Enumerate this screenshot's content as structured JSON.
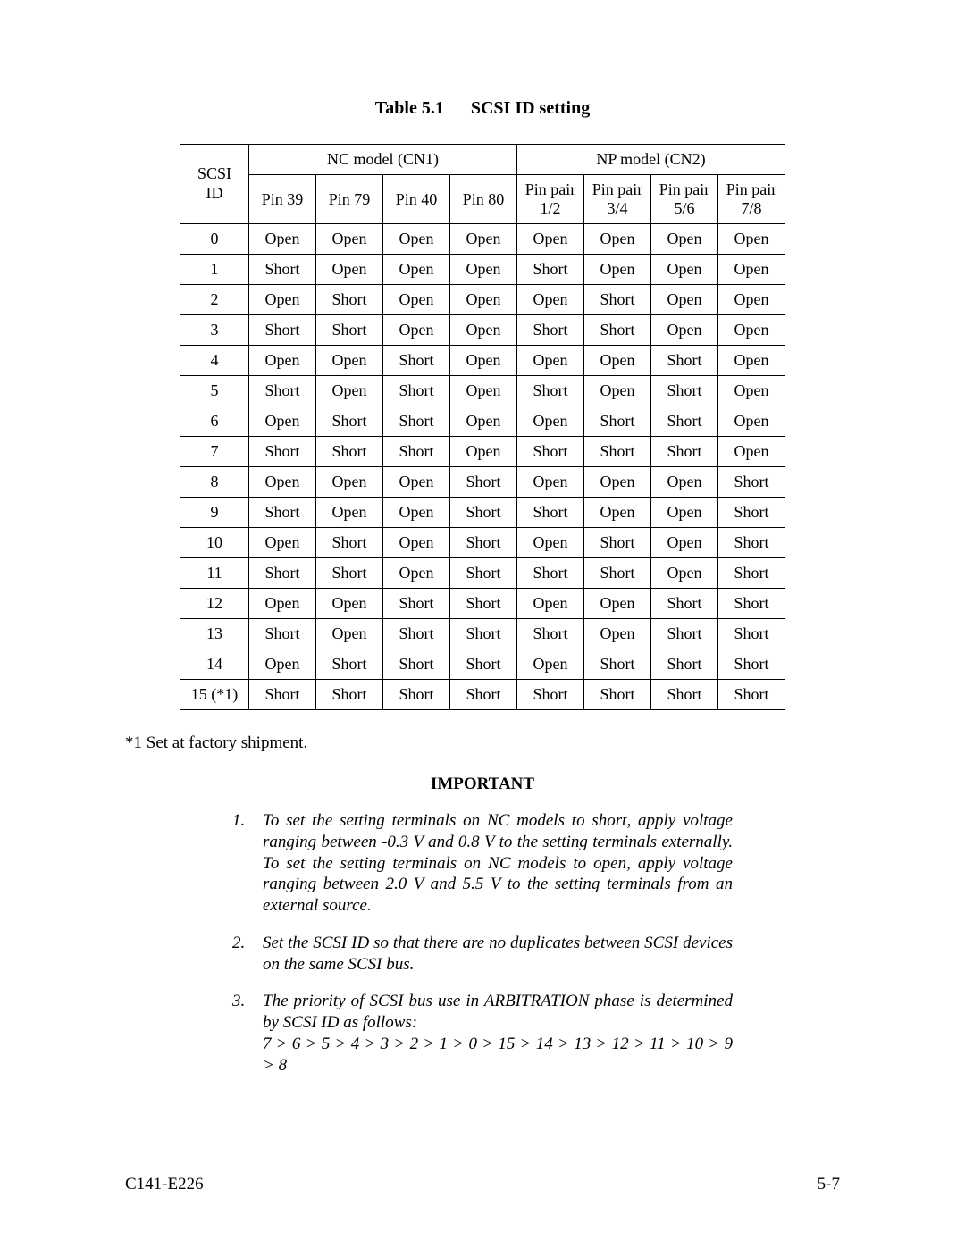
{
  "title_label": "Table 5.1",
  "title_text": "SCSI ID setting",
  "table": {
    "id_header": "SCSI ID",
    "group_headers": [
      "NC model (CN1)",
      "NP model (CN2)"
    ],
    "sub_headers": [
      "Pin 39",
      "Pin 79",
      "Pin 40",
      "Pin 80",
      "Pin pair 1/2",
      "Pin pair 3/4",
      "Pin pair 5/6",
      "Pin pair 7/8"
    ],
    "rows": [
      {
        "id": "0",
        "cells": [
          "Open",
          "Open",
          "Open",
          "Open",
          "Open",
          "Open",
          "Open",
          "Open"
        ]
      },
      {
        "id": "1",
        "cells": [
          "Short",
          "Open",
          "Open",
          "Open",
          "Short",
          "Open",
          "Open",
          "Open"
        ]
      },
      {
        "id": "2",
        "cells": [
          "Open",
          "Short",
          "Open",
          "Open",
          "Open",
          "Short",
          "Open",
          "Open"
        ]
      },
      {
        "id": "3",
        "cells": [
          "Short",
          "Short",
          "Open",
          "Open",
          "Short",
          "Short",
          "Open",
          "Open"
        ]
      },
      {
        "id": "4",
        "cells": [
          "Open",
          "Open",
          "Short",
          "Open",
          "Open",
          "Open",
          "Short",
          "Open"
        ]
      },
      {
        "id": "5",
        "cells": [
          "Short",
          "Open",
          "Short",
          "Open",
          "Short",
          "Open",
          "Short",
          "Open"
        ]
      },
      {
        "id": "6",
        "cells": [
          "Open",
          "Short",
          "Short",
          "Open",
          "Open",
          "Short",
          "Short",
          "Open"
        ]
      },
      {
        "id": "7",
        "cells": [
          "Short",
          "Short",
          "Short",
          "Open",
          "Short",
          "Short",
          "Short",
          "Open"
        ]
      },
      {
        "id": "8",
        "cells": [
          "Open",
          "Open",
          "Open",
          "Short",
          "Open",
          "Open",
          "Open",
          "Short"
        ]
      },
      {
        "id": "9",
        "cells": [
          "Short",
          "Open",
          "Open",
          "Short",
          "Short",
          "Open",
          "Open",
          "Short"
        ]
      },
      {
        "id": "10",
        "cells": [
          "Open",
          "Short",
          "Open",
          "Short",
          "Open",
          "Short",
          "Open",
          "Short"
        ]
      },
      {
        "id": "11",
        "cells": [
          "Short",
          "Short",
          "Open",
          "Short",
          "Short",
          "Short",
          "Open",
          "Short"
        ]
      },
      {
        "id": "12",
        "cells": [
          "Open",
          "Open",
          "Short",
          "Short",
          "Open",
          "Open",
          "Short",
          "Short"
        ]
      },
      {
        "id": "13",
        "cells": [
          "Short",
          "Open",
          "Short",
          "Short",
          "Short",
          "Open",
          "Short",
          "Short"
        ]
      },
      {
        "id": "14",
        "cells": [
          "Open",
          "Short",
          "Short",
          "Short",
          "Open",
          "Short",
          "Short",
          "Short"
        ]
      },
      {
        "id": "15 (*1)",
        "cells": [
          "Short",
          "Short",
          "Short",
          "Short",
          "Short",
          "Short",
          "Short",
          "Short"
        ]
      }
    ]
  },
  "footnote": "*1  Set at factory shipment.",
  "important_heading": "IMPORTANT",
  "notes": [
    "To set the setting terminals on NC models to short, apply voltage ranging between -0.3 V and 0.8 V to the setting terminals externally.  To set the setting terminals on NC models to open, apply voltage ranging between 2.0 V and 5.5 V to the setting terminals from an external source.",
    "Set the SCSI ID so that there are no duplicates between SCSI devices on the same SCSI bus.",
    "The priority of SCSI bus use in ARBITRATION phase is determined by SCSI ID as follows:\n7 > 6 > 5 > 4 > 3 > 2 > 1 > 0 > 15 > 14 > 13 > 12 > 11 > 10 > 9 > 8"
  ],
  "note_numbers": [
    "1.",
    "2.",
    "3."
  ],
  "footer_left": "C141-E226",
  "footer_right": "5-7",
  "pin_pair_header_lines": {
    "4": [
      "Pin pair",
      "1/2"
    ],
    "5": [
      "Pin pair",
      "3/4"
    ],
    "6": [
      "Pin pair",
      "5/6"
    ],
    "7": [
      "Pin pair",
      "7/8"
    ]
  }
}
